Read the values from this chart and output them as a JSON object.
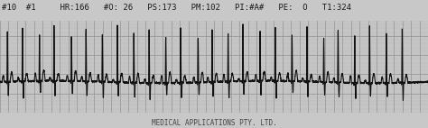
{
  "background_color": "#c8c8c8",
  "grid_major_color": "#909090",
  "grid_minor_color": "#b8b8b8",
  "ecg_color": "#111111",
  "header_text": "#10  #1     HR:166   #O: 26   PS:173   PM:102   PI:#A#   PE:  O   T1:324",
  "footer_text": "MEDICAL APPLICATIONS PTY. LTD.",
  "header_fontsize": 6.5,
  "footer_fontsize": 5.5,
  "figsize": [
    4.74,
    1.42
  ],
  "dpi": 100,
  "heart_rate": 166,
  "duration": 10,
  "sample_rate": 500,
  "ylim_low": -0.4,
  "ylim_high": 0.8
}
